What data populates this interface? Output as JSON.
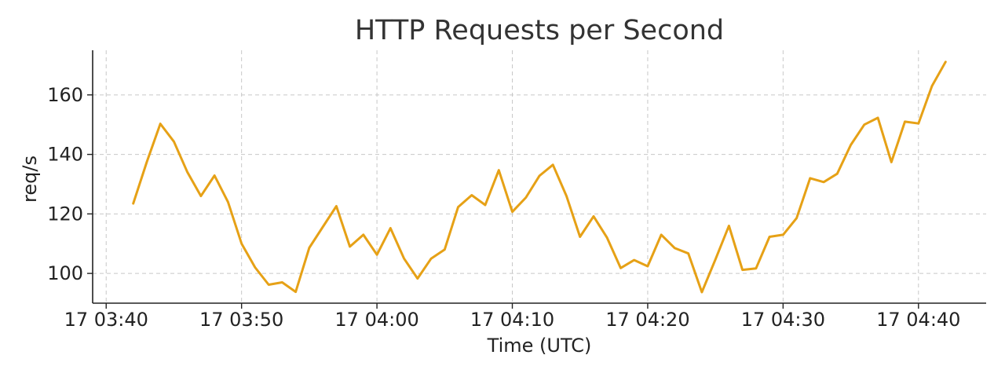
{
  "chart_data": {
    "type": "line",
    "title": "HTTP Requests per Second",
    "xlabel": "Time (UTC)",
    "ylabel": "req/s",
    "x_ticks": [
      "17 03:40",
      "17 03:50",
      "17 04:00",
      "17 04:10",
      "17 04:20",
      "17 04:30",
      "17 04:40"
    ],
    "y_ticks": [
      100,
      120,
      140,
      160
    ],
    "xlim": [
      "03:39",
      "04:45"
    ],
    "ylim": [
      90,
      175
    ],
    "grid": true,
    "color": "#e6a116",
    "x": [
      "03:42",
      "03:43",
      "03:44",
      "03:45",
      "03:46",
      "03:47",
      "03:48",
      "03:49",
      "03:50",
      "03:51",
      "03:52",
      "03:53",
      "03:54",
      "03:55",
      "03:56",
      "03:57",
      "03:58",
      "03:59",
      "04:00",
      "04:01",
      "04:02",
      "04:03",
      "04:04",
      "04:05",
      "04:06",
      "04:07",
      "04:08",
      "04:09",
      "04:10",
      "04:11",
      "04:12",
      "04:13",
      "04:14",
      "04:15",
      "04:16",
      "04:17",
      "04:18",
      "04:19",
      "04:20",
      "04:21",
      "04:22",
      "04:23",
      "04:24",
      "04:25",
      "04:26",
      "04:27",
      "04:28",
      "04:29",
      "04:30",
      "04:31",
      "04:32",
      "04:33",
      "04:34",
      "04:35",
      "04:36",
      "04:37",
      "04:38",
      "04:39",
      "04:40",
      "04:41",
      "04:42"
    ],
    "values": [
      123.5,
      137.5,
      150.3,
      144.3,
      134,
      126,
      132.9,
      124,
      110,
      102,
      96.2,
      97,
      93.8,
      108.6,
      115.6,
      122.6,
      109,
      113,
      106.3,
      115.2,
      105,
      98.3,
      105,
      108,
      122.3,
      126.3,
      123,
      134.7,
      120.7,
      125.5,
      132.8,
      136.5,
      126,
      112.3,
      119.2,
      112,
      101.8,
      104.5,
      102.4,
      113,
      108.5,
      106.7,
      93.7,
      104.7,
      116,
      101.2,
      101.7,
      112.3,
      113,
      118.6,
      132,
      130.7,
      133.5,
      143.2,
      150,
      152.3,
      137.4,
      151,
      150.4,
      163,
      171.1
    ]
  }
}
